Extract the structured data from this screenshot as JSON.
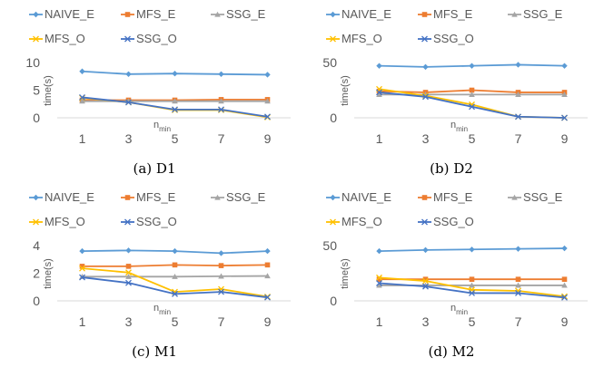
{
  "chart_data": [
    {
      "type": "line",
      "caption": "(a) D1",
      "xlabel": "n",
      "xlabel_sub": "min",
      "ylabel": "time(s)",
      "categories": [
        "1",
        "3",
        "5",
        "7",
        "9"
      ],
      "yticks": [
        "0",
        "5",
        "10"
      ],
      "ylim": [
        0,
        10
      ],
      "grid": false,
      "legend": "top",
      "series": [
        {
          "name": "NAIVE_E",
          "values": [
            8.4,
            7.9,
            8.0,
            7.9,
            7.8
          ]
        },
        {
          "name": "MFS_E",
          "values": [
            3.2,
            3.2,
            3.2,
            3.3,
            3.3
          ]
        },
        {
          "name": "SSG_E",
          "values": [
            3.0,
            3.0,
            3.0,
            3.0,
            3.0
          ]
        },
        {
          "name": "MFS_O",
          "values": [
            3.6,
            2.8,
            1.4,
            1.4,
            0.1
          ]
        },
        {
          "name": "SSG_O",
          "values": [
            3.7,
            2.8,
            1.5,
            1.5,
            0.2
          ]
        }
      ]
    },
    {
      "type": "line",
      "caption": "(b) D2",
      "xlabel": "n",
      "xlabel_sub": "min",
      "ylabel": "time(s)",
      "categories": [
        "1",
        "3",
        "5",
        "7",
        "9"
      ],
      "yticks": [
        "0",
        "50"
      ],
      "ylim": [
        0,
        50
      ],
      "grid": false,
      "legend": "top",
      "series": [
        {
          "name": "NAIVE_E",
          "values": [
            47,
            46,
            47,
            48,
            47
          ]
        },
        {
          "name": "MFS_E",
          "values": [
            24,
            23,
            25,
            23,
            23
          ]
        },
        {
          "name": "SSG_E",
          "values": [
            21,
            21,
            21,
            21,
            21
          ]
        },
        {
          "name": "MFS_O",
          "values": [
            26,
            20,
            12,
            1,
            0
          ]
        },
        {
          "name": "SSG_O",
          "values": [
            23,
            19,
            10,
            1,
            0
          ]
        }
      ]
    },
    {
      "type": "line",
      "caption": "(c) M1",
      "xlabel": "n",
      "xlabel_sub": "min",
      "ylabel": "time(s)",
      "categories": [
        "1",
        "3",
        "5",
        "7",
        "9"
      ],
      "yticks": [
        "0",
        "2",
        "4"
      ],
      "ylim": [
        0,
        4
      ],
      "grid": false,
      "legend": "top",
      "series": [
        {
          "name": "NAIVE_E",
          "values": [
            3.6,
            3.65,
            3.6,
            3.45,
            3.6
          ]
        },
        {
          "name": "MFS_E",
          "values": [
            2.5,
            2.5,
            2.6,
            2.55,
            2.6
          ]
        },
        {
          "name": "SSG_E",
          "values": [
            1.75,
            1.75,
            1.75,
            1.78,
            1.8
          ]
        },
        {
          "name": "MFS_O",
          "values": [
            2.35,
            2.05,
            0.65,
            0.85,
            0.3
          ]
        },
        {
          "name": "SSG_O",
          "values": [
            1.7,
            1.3,
            0.5,
            0.65,
            0.25
          ]
        }
      ]
    },
    {
      "type": "line",
      "caption": "(d) M2",
      "xlabel": "n",
      "xlabel_sub": "min",
      "ylabel": "time(s)",
      "categories": [
        "1",
        "3",
        "5",
        "7",
        "9"
      ],
      "yticks": [
        "0",
        "50"
      ],
      "ylim": [
        0,
        50
      ],
      "grid": false,
      "legend": "top",
      "series": [
        {
          "name": "NAIVE_E",
          "values": [
            45,
            46,
            46.5,
            47,
            47.5
          ]
        },
        {
          "name": "MFS_E",
          "values": [
            19.5,
            19.5,
            19.5,
            19.5,
            19.5
          ]
        },
        {
          "name": "SSG_E",
          "values": [
            14,
            14,
            14,
            14,
            14
          ]
        },
        {
          "name": "MFS_O",
          "values": [
            21,
            18,
            10,
            9,
            4
          ]
        },
        {
          "name": "SSG_O",
          "values": [
            16,
            13,
            7,
            7,
            3
          ]
        }
      ]
    }
  ],
  "colors": {
    "NAIVE_E": "#5b9bd5",
    "MFS_E": "#ed7d31",
    "SSG_E": "#a5a5a5",
    "MFS_O": "#ffc000",
    "SSG_O": "#4472c4",
    "axis": "#d9d9d9",
    "text": "#595959"
  },
  "markers": {
    "NAIVE_E": "diamond",
    "MFS_E": "square",
    "SSG_E": "triangle",
    "MFS_O": "x",
    "SSG_O": "x"
  }
}
